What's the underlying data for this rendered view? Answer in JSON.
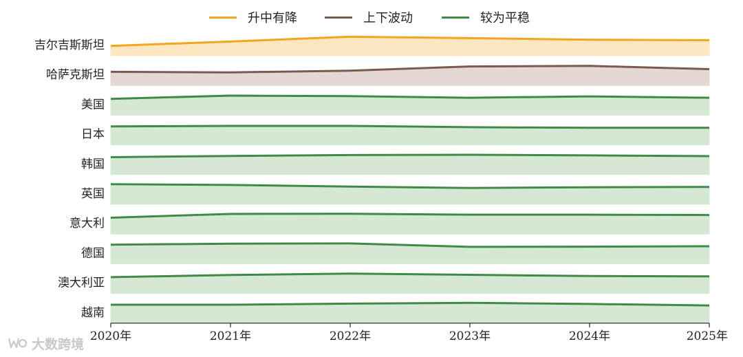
{
  "chart_data": {
    "type": "area",
    "x": [
      "2020年",
      "2021年",
      "2022年",
      "2023年",
      "2024年",
      "2025年"
    ],
    "legend": [
      {
        "name": "升中有降",
        "color": "#f2a51f",
        "fill": "#fde7c1"
      },
      {
        "name": "上下波动",
        "color": "#7a5a4f",
        "fill": "#e4d8d4"
      },
      {
        "name": "较为平稳",
        "color": "#3f8a45",
        "fill": "#d5e8d4"
      }
    ],
    "series": [
      {
        "name": "吉尔吉斯斯坦",
        "group": "升中有降",
        "values": [
          0.15,
          0.55,
          1.0,
          0.87,
          0.72,
          0.68
        ]
      },
      {
        "name": "哈萨克斯坦",
        "group": "上下波动",
        "values": [
          0.5,
          0.45,
          0.6,
          1.0,
          1.05,
          0.75
        ]
      },
      {
        "name": "美国",
        "group": "较为平稳",
        "values": [
          0.75,
          1.05,
          1.0,
          0.85,
          0.98,
          0.85
        ]
      },
      {
        "name": "日本",
        "group": "较为平稳",
        "values": [
          0.95,
          1.0,
          1.0,
          0.88,
          0.82,
          0.82
        ]
      },
      {
        "name": "韩国",
        "group": "较为平稳",
        "values": [
          0.85,
          0.97,
          1.05,
          1.08,
          1.02,
          0.95
        ]
      },
      {
        "name": "英国",
        "group": "较为平稳",
        "values": [
          1.1,
          1.03,
          0.88,
          0.75,
          0.82,
          0.85
        ]
      },
      {
        "name": "意大利",
        "group": "较为平稳",
        "values": [
          0.75,
          1.1,
          1.12,
          1.03,
          1.03,
          1.0
        ]
      },
      {
        "name": "德国",
        "group": "较为平稳",
        "values": [
          1.0,
          1.1,
          1.12,
          0.8,
          0.82,
          0.86
        ]
      },
      {
        "name": "澳大利亚",
        "group": "较为平稳",
        "values": [
          0.75,
          0.95,
          1.08,
          0.97,
          0.85,
          0.82
        ]
      },
      {
        "name": "越南",
        "group": "较为平稳",
        "values": [
          0.95,
          0.95,
          1.05,
          1.12,
          1.02,
          0.88
        ]
      }
    ],
    "legend_position": "top-center",
    "grid": false
  },
  "watermark": {
    "text": "大数跨境"
  }
}
